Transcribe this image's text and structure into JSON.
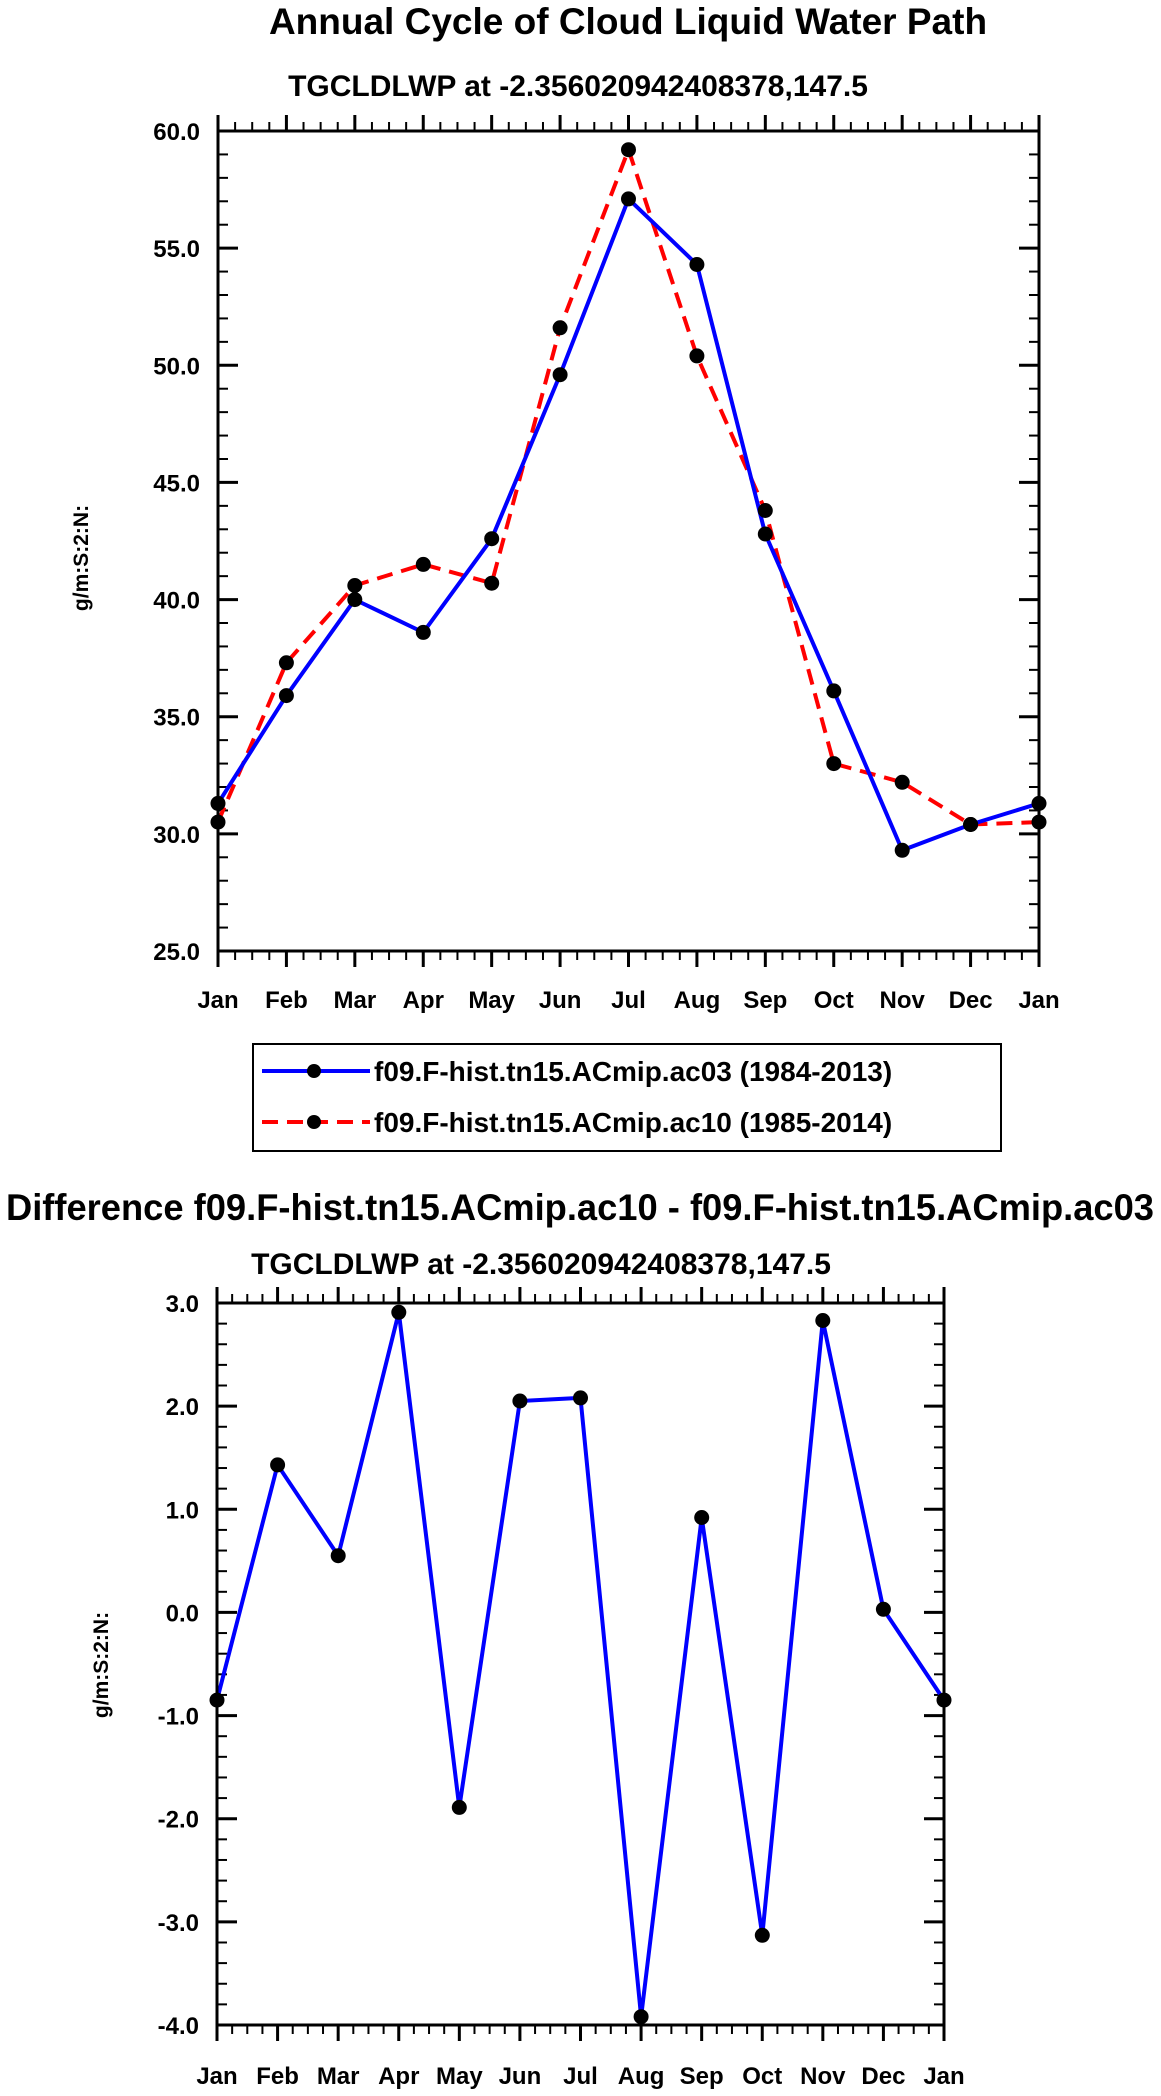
{
  "chart_data": [
    {
      "type": "line",
      "title": "Annual Cycle of Cloud Liquid Water Path",
      "subtitle": "TGCLDLWP at -2.356020942408378,147.5",
      "xlabel": "",
      "ylabel": "g/m:S:2:N:",
      "categories": [
        "Jan",
        "Feb",
        "Mar",
        "Apr",
        "May",
        "Jun",
        "Jul",
        "Aug",
        "Sep",
        "Oct",
        "Nov",
        "Dec",
        "Jan"
      ],
      "ylim": [
        25,
        60
      ],
      "yticks": [
        "25.0",
        "30.0",
        "35.0",
        "40.0",
        "45.0",
        "50.0",
        "55.0",
        "60.0"
      ],
      "series": [
        {
          "name": "f09.F-hist.tn15.ACmip.ac03 (1984-2013)",
          "color": "#0000ff",
          "style": "solid",
          "values": [
            31.3,
            35.9,
            40.0,
            38.6,
            42.6,
            49.6,
            57.1,
            54.3,
            42.8,
            36.1,
            29.3,
            30.4,
            31.3
          ]
        },
        {
          "name": "f09.F-hist.tn15.ACmip.ac10 (1985-2014)",
          "color": "#ff0000",
          "style": "dashed",
          "values": [
            30.5,
            37.3,
            40.6,
            41.5,
            40.7,
            51.6,
            59.2,
            50.4,
            43.8,
            33.0,
            32.2,
            30.4,
            30.5
          ]
        }
      ],
      "legend": "bottom"
    },
    {
      "type": "line",
      "title": "Difference f09.F-hist.tn15.ACmip.ac10 - f09.F-hist.tn15.ACmip.ac03",
      "subtitle": "TGCLDLWP at -2.356020942408378,147.5",
      "xlabel": "",
      "ylabel": "g/m:S:2:N:",
      "categories": [
        "Jan",
        "Feb",
        "Mar",
        "Apr",
        "May",
        "Jun",
        "Jul",
        "Aug",
        "Sep",
        "Oct",
        "Nov",
        "Dec",
        "Jan"
      ],
      "ylim": [
        -4,
        3
      ],
      "yticks": [
        "-4.0",
        "-3.0",
        "-2.0",
        "-1.0",
        "0.0",
        "1.0",
        "2.0",
        "3.0"
      ],
      "series": [
        {
          "name": "difference",
          "color": "#0000ff",
          "style": "solid",
          "values": [
            -0.85,
            1.43,
            0.55,
            2.91,
            -1.89,
            2.05,
            2.08,
            -3.92,
            0.92,
            -3.13,
            2.83,
            0.03,
            -0.85
          ]
        }
      ]
    }
  ]
}
